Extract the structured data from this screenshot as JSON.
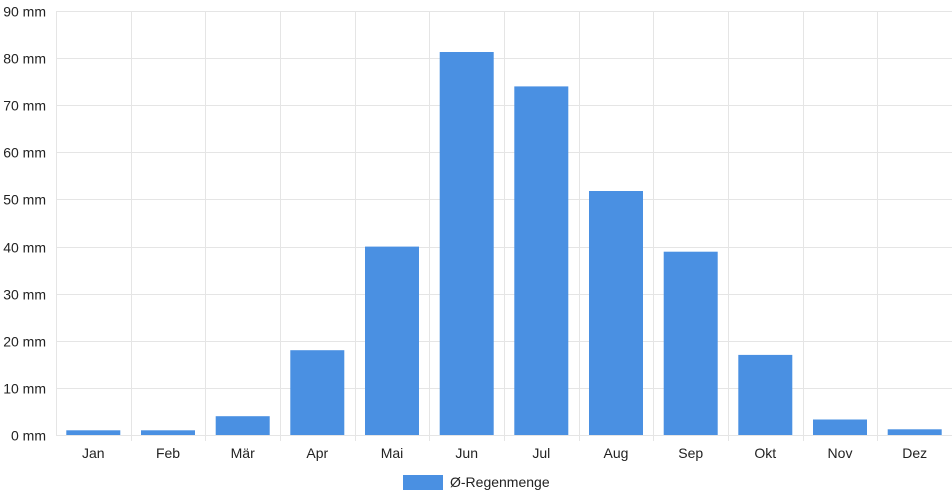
{
  "chart_data": {
    "type": "bar",
    "categories": [
      "Jan",
      "Feb",
      "Mär",
      "Apr",
      "Mai",
      "Jun",
      "Jul",
      "Aug",
      "Sep",
      "Okt",
      "Nov",
      "Dez"
    ],
    "series": [
      {
        "name": "Ø-Regenmenge",
        "values": [
          1,
          1,
          4,
          18,
          40,
          81.3,
          74,
          51.8,
          38.9,
          17,
          3.3,
          1.2
        ],
        "color": "#4a90e2"
      }
    ],
    "y_ticks": [
      "0 mm",
      "10 mm",
      "20 mm",
      "30 mm",
      "40 mm",
      "50 mm",
      "60 mm",
      "70 mm",
      "80 mm",
      "90 mm"
    ],
    "ylim": [
      0,
      90
    ],
    "y_unit": "mm",
    "grid": true,
    "legend_position": "bottom-center",
    "grid_color": "#e5e5e5",
    "text_color": "#222222"
  }
}
